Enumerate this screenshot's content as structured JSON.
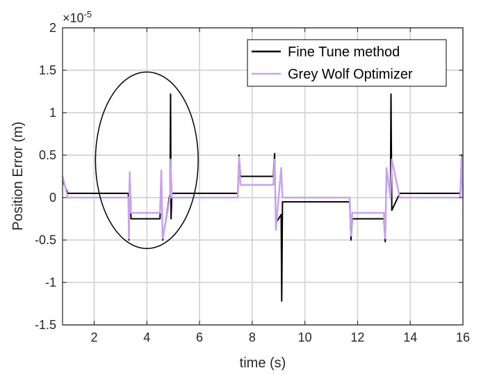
{
  "chart_data": {
    "type": "line",
    "xlabel": "time (s)",
    "ylabel": "Position Error (m)",
    "y_exponent_label": "×10",
    "y_exponent_power": "-5",
    "xlim": [
      0.8,
      16
    ],
    "ylim": [
      -1.5,
      2
    ],
    "x_ticks": [
      2,
      4,
      6,
      8,
      10,
      12,
      14,
      16
    ],
    "x_tick_labels": [
      "2",
      "4",
      "6",
      "8",
      "10",
      "12",
      "14",
      "16"
    ],
    "y_ticks": [
      -1.5,
      -1,
      -0.5,
      0,
      0.5,
      1,
      1.5,
      2
    ],
    "y_tick_labels": [
      "-1.5",
      "-1",
      "-0.5",
      "0",
      "0.5",
      "1",
      "1.5",
      "2"
    ],
    "grid": true,
    "legend_position": "top-right",
    "series": [
      {
        "name": "Fine Tune method",
        "color": "#000000",
        "x": [
          0.8,
          1.0,
          3.3,
          3.32,
          3.35,
          3.4,
          4.5,
          4.55,
          4.6,
          4.88,
          4.9,
          4.92,
          4.95,
          5.2,
          7.45,
          7.5,
          7.55,
          8.8,
          8.85,
          8.9,
          9.1,
          9.12,
          9.15,
          9.4,
          11.7,
          11.75,
          11.8,
          13.0,
          13.05,
          13.1,
          13.25,
          13.27,
          13.3,
          13.6,
          15.9,
          15.95,
          16.0
        ],
        "y": [
          0.2,
          0.05,
          0.05,
          -0.5,
          0.3,
          -0.25,
          -0.25,
          0.3,
          -0.5,
          0.05,
          1.22,
          -0.25,
          0.05,
          0.05,
          0.05,
          0.5,
          0.25,
          0.25,
          0.52,
          -0.3,
          -0.2,
          -1.22,
          -0.05,
          -0.05,
          -0.05,
          -0.5,
          -0.25,
          -0.25,
          -0.52,
          0.3,
          0.05,
          1.22,
          -0.15,
          0.05,
          0.05,
          0.5,
          0.05
        ]
      },
      {
        "name": "Grey Wolf Optimizer",
        "color": "#c8a2f0",
        "x": [
          0.8,
          1.0,
          3.3,
          3.32,
          3.35,
          3.4,
          4.5,
          4.55,
          4.6,
          4.88,
          4.9,
          4.95,
          5.2,
          7.45,
          7.5,
          7.55,
          8.8,
          8.85,
          8.9,
          9.1,
          9.15,
          9.4,
          11.7,
          11.75,
          11.8,
          13.0,
          13.05,
          13.1,
          13.25,
          13.3,
          13.6,
          15.9,
          15.95,
          16.0
        ],
        "y": [
          0.25,
          0.0,
          0.0,
          -0.48,
          0.3,
          -0.18,
          -0.18,
          0.32,
          -0.48,
          0.0,
          0.45,
          0.0,
          0.0,
          0.0,
          0.48,
          0.15,
          0.15,
          0.45,
          -0.38,
          0.35,
          0.0,
          0.0,
          0.0,
          -0.45,
          -0.18,
          -0.18,
          -0.48,
          0.35,
          0.0,
          0.45,
          0.0,
          0.0,
          0.48,
          0.0
        ]
      }
    ],
    "annotations": [
      {
        "type": "ellipse",
        "cx": 4.0,
        "cy": 0.44,
        "rx": 1.95,
        "ry": 1.04,
        "color": "#000000"
      }
    ]
  }
}
